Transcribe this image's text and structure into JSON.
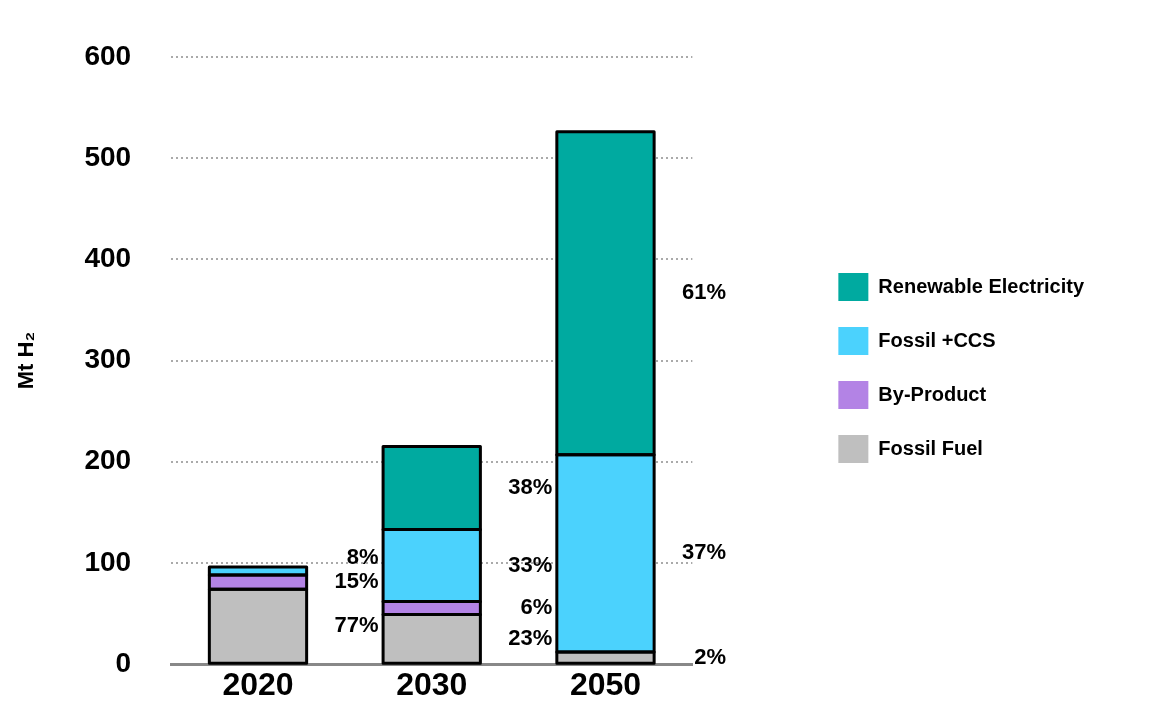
{
  "chart_data": {
    "type": "bar",
    "stacked": true,
    "ylabel": "Mt H₂",
    "categories": [
      "2020",
      "2030",
      "2050"
    ],
    "series": [
      {
        "name": "Fossil Fuel",
        "color": "#bfbfbf",
        "values": [
          74,
          49,
          12
        ]
      },
      {
        "name": "By-Product",
        "color": "#b383e5",
        "values": [
          14,
          13,
          null
        ]
      },
      {
        "name": "Fossil +CCS",
        "color": "#4bd2fd",
        "values": [
          8,
          71,
          195
        ]
      },
      {
        "name": "Renewable Electricity",
        "color": "#00aaa0",
        "values": [
          null,
          82,
          319
        ]
      }
    ],
    "annotations": [
      "77%",
      "15%",
      "8%",
      "23%",
      "6%",
      "33%",
      "38%",
      "2%",
      "37%",
      "61%"
    ],
    "ylim": [
      0,
      600
    ],
    "yticks": [
      0,
      100,
      200,
      300,
      400,
      500,
      600
    ],
    "grid": "y",
    "legend": "right"
  }
}
